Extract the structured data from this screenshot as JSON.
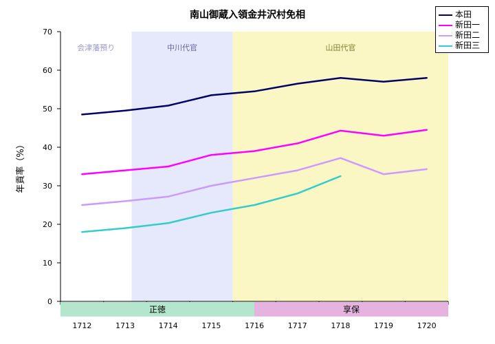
{
  "chart_data": {
    "type": "line",
    "title": "南山御蔵入領金井沢村免相",
    "ylabel": "年貢率（%）",
    "ylim": [
      0,
      70
    ],
    "yticks": [
      0,
      10,
      20,
      30,
      40,
      50,
      60,
      70
    ],
    "categories": [
      "1712",
      "1713",
      "1714",
      "1715",
      "1716",
      "1717",
      "1718",
      "1719",
      "1720"
    ],
    "series": [
      {
        "name": "本田",
        "color": "#000066",
        "values": [
          48.5,
          49.5,
          50.8,
          53.5,
          54.5,
          56.5,
          58,
          57,
          58
        ]
      },
      {
        "name": "新田一",
        "color": "#ff00ff",
        "values": [
          33,
          34,
          35,
          38,
          39,
          41,
          44.3,
          43,
          44.5
        ]
      },
      {
        "name": "新田二",
        "color": "#cc99ff",
        "values": [
          25,
          26,
          27.2,
          30,
          32,
          34,
          37.2,
          33,
          34.3
        ]
      },
      {
        "name": "新田三",
        "color": "#33cccc",
        "values": [
          18,
          19,
          20.3,
          23,
          25,
          28,
          32.5,
          null,
          null
        ]
      }
    ],
    "regions": [
      {
        "label": "会津藩預り",
        "color": "#ffffff",
        "text_color": "#9999cc"
      },
      {
        "label": "中川代官",
        "color": "#e6e8fb",
        "text_color": "#666699"
      },
      {
        "label": "山田代官",
        "color": "#fbf7c4",
        "text_color": "#808033"
      }
    ],
    "eras": [
      {
        "label": "正徳",
        "color": "#b3e6cc"
      },
      {
        "label": "享保",
        "color": "#e6b3e0"
      }
    ],
    "legend_position": "top-right",
    "grid": false
  }
}
